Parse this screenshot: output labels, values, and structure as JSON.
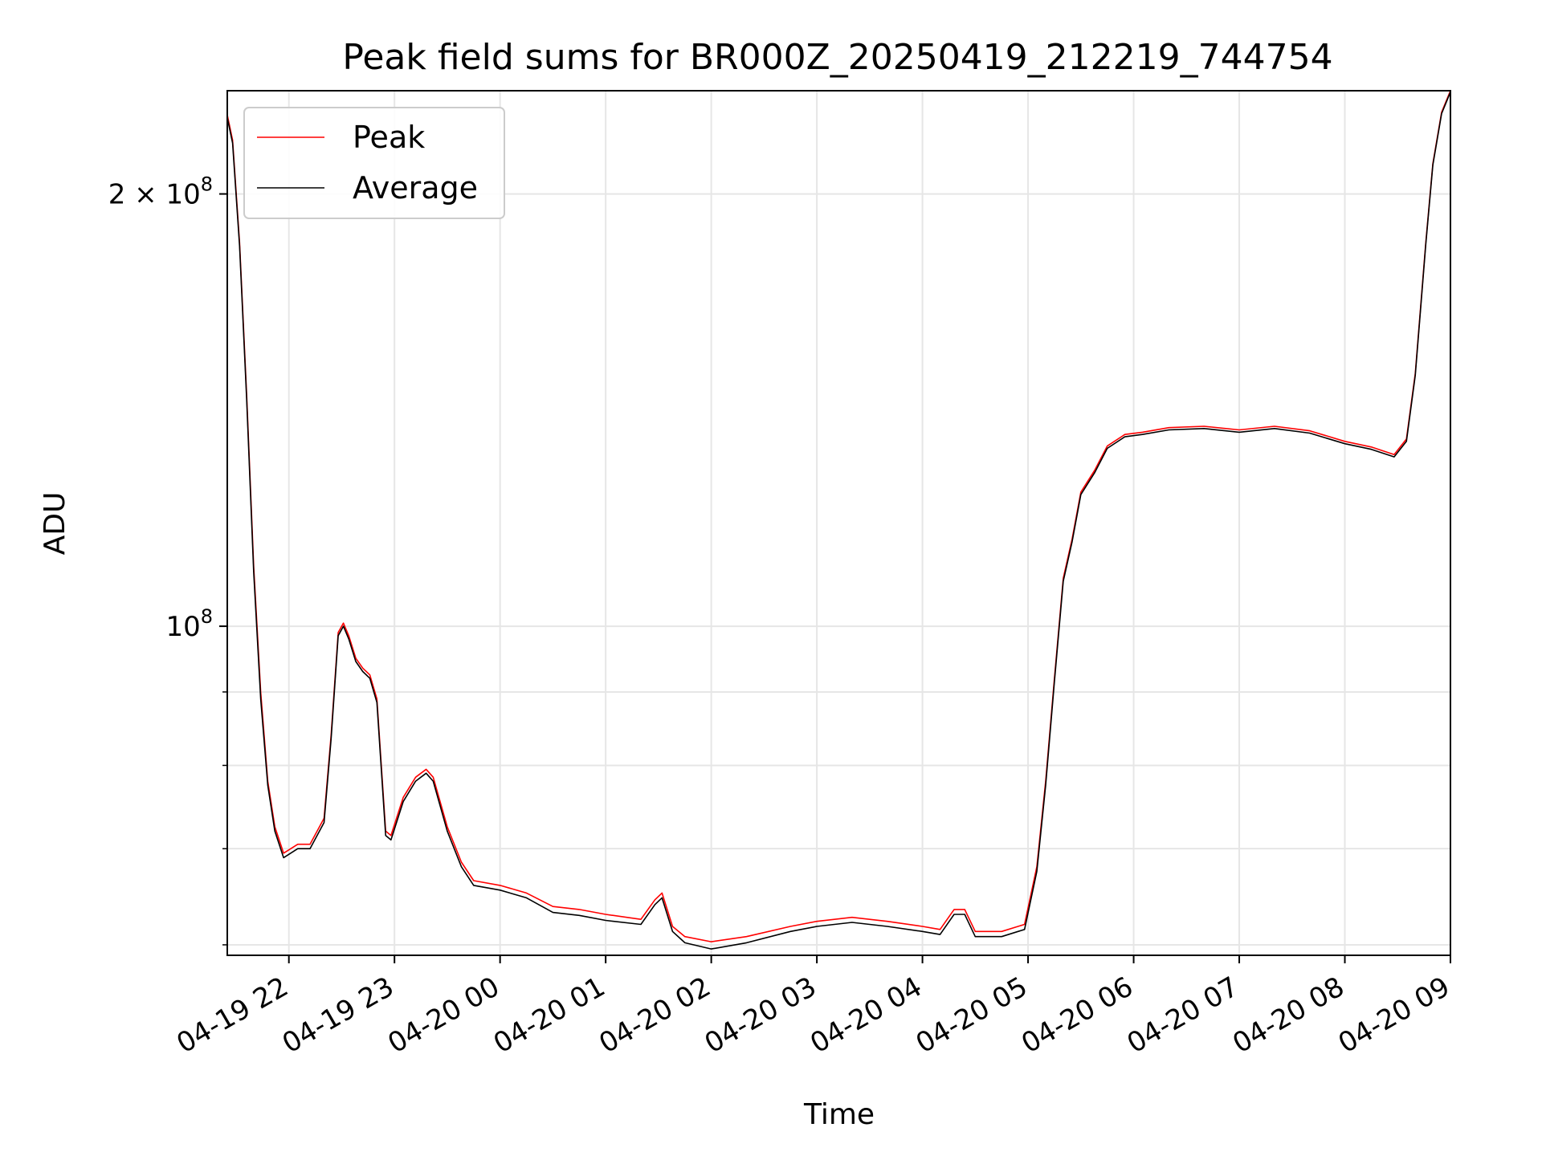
{
  "chart_data": {
    "type": "line",
    "title": "Peak field sums for BR000Z_20250419_212219_744754",
    "xlabel": "Time",
    "ylabel": "ADU",
    "yscale": "log",
    "xlim": [
      "2025-04-19 21:25",
      "2025-04-20 09:00"
    ],
    "ylim": [
      59000000,
      236000000
    ],
    "grid": true,
    "legend_position": "upper-left",
    "x_ticks": [
      {
        "t": "2025-04-19 22:00",
        "label": "04-19 22"
      },
      {
        "t": "2025-04-19 23:00",
        "label": "04-19 23"
      },
      {
        "t": "2025-04-20 00:00",
        "label": "04-20 00"
      },
      {
        "t": "2025-04-20 01:00",
        "label": "04-20 01"
      },
      {
        "t": "2025-04-20 02:00",
        "label": "04-20 02"
      },
      {
        "t": "2025-04-20 03:00",
        "label": "04-20 03"
      },
      {
        "t": "2025-04-20 04:00",
        "label": "04-20 04"
      },
      {
        "t": "2025-04-20 05:00",
        "label": "04-20 05"
      },
      {
        "t": "2025-04-20 06:00",
        "label": "04-20 06"
      },
      {
        "t": "2025-04-20 07:00",
        "label": "04-20 07"
      },
      {
        "t": "2025-04-20 08:00",
        "label": "04-20 08"
      },
      {
        "t": "2025-04-20 09:00",
        "label": "04-20 09"
      }
    ],
    "y_major_ticks": [
      {
        "value": 100000000,
        "label_base": "10",
        "label_exp": "8"
      },
      {
        "value": 200000000,
        "label_base": "2 × 10",
        "label_exp": "8"
      }
    ],
    "y_minor_ticks": [
      60000000,
      70000000,
      80000000,
      90000000
    ],
    "series": [
      {
        "name": "Peak",
        "color": "#ff0000",
        "points": [
          [
            "2025-04-19 21:25",
            227000000
          ],
          [
            "2025-04-19 21:28",
            218000000
          ],
          [
            "2025-04-19 21:32",
            185000000
          ],
          [
            "2025-04-19 21:36",
            145000000
          ],
          [
            "2025-04-19 21:40",
            110000000
          ],
          [
            "2025-04-19 21:44",
            90000000
          ],
          [
            "2025-04-19 21:48",
            78000000
          ],
          [
            "2025-04-19 21:52",
            72500000
          ],
          [
            "2025-04-19 21:57",
            69500000
          ],
          [
            "2025-04-19 22:05",
            70500000
          ],
          [
            "2025-04-19 22:12",
            70500000
          ],
          [
            "2025-04-19 22:20",
            73500000
          ],
          [
            "2025-04-19 22:24",
            84000000
          ],
          [
            "2025-04-19 22:28",
            99000000
          ],
          [
            "2025-04-19 22:31",
            100500000
          ],
          [
            "2025-04-19 22:34",
            98500000
          ],
          [
            "2025-04-19 22:38",
            95000000
          ],
          [
            "2025-04-19 22:42",
            93500000
          ],
          [
            "2025-04-19 22:46",
            92500000
          ],
          [
            "2025-04-19 22:50",
            89000000
          ],
          [
            "2025-04-19 22:55",
            72000000
          ],
          [
            "2025-04-19 22:58",
            71500000
          ],
          [
            "2025-04-19 23:05",
            76000000
          ],
          [
            "2025-04-19 23:12",
            78500000
          ],
          [
            "2025-04-19 23:18",
            79500000
          ],
          [
            "2025-04-19 23:22",
            78500000
          ],
          [
            "2025-04-19 23:30",
            72500000
          ],
          [
            "2025-04-19 23:38",
            68500000
          ],
          [
            "2025-04-19 23:45",
            66500000
          ],
          [
            "2025-04-20 00:00",
            66000000
          ],
          [
            "2025-04-20 00:15",
            65200000
          ],
          [
            "2025-04-20 00:30",
            63800000
          ],
          [
            "2025-04-20 00:45",
            63500000
          ],
          [
            "2025-04-20 01:00",
            63000000
          ],
          [
            "2025-04-20 01:20",
            62500000
          ],
          [
            "2025-04-20 01:28",
            64500000
          ],
          [
            "2025-04-20 01:32",
            65200000
          ],
          [
            "2025-04-20 01:38",
            61800000
          ],
          [
            "2025-04-20 01:45",
            60800000
          ],
          [
            "2025-04-20 02:00",
            60300000
          ],
          [
            "2025-04-20 02:20",
            60800000
          ],
          [
            "2025-04-20 02:45",
            61800000
          ],
          [
            "2025-04-20 03:00",
            62300000
          ],
          [
            "2025-04-20 03:20",
            62700000
          ],
          [
            "2025-04-20 03:40",
            62300000
          ],
          [
            "2025-04-20 04:00",
            61800000
          ],
          [
            "2025-04-20 04:10",
            61500000
          ],
          [
            "2025-04-20 04:18",
            63500000
          ],
          [
            "2025-04-20 04:24",
            63500000
          ],
          [
            "2025-04-20 04:30",
            61300000
          ],
          [
            "2025-04-20 04:45",
            61300000
          ],
          [
            "2025-04-20 04:58",
            62000000
          ],
          [
            "2025-04-20 05:05",
            68000000
          ],
          [
            "2025-04-20 05:10",
            78000000
          ],
          [
            "2025-04-20 05:15",
            92000000
          ],
          [
            "2025-04-20 05:20",
            108000000
          ],
          [
            "2025-04-20 05:25",
            115000000
          ],
          [
            "2025-04-20 05:30",
            124000000
          ],
          [
            "2025-04-20 05:38",
            128500000
          ],
          [
            "2025-04-20 05:45",
            133500000
          ],
          [
            "2025-04-20 05:55",
            136000000
          ],
          [
            "2025-04-20 06:05",
            136500000
          ],
          [
            "2025-04-20 06:20",
            137500000
          ],
          [
            "2025-04-20 06:40",
            137800000
          ],
          [
            "2025-04-20 07:00",
            137000000
          ],
          [
            "2025-04-20 07:20",
            137800000
          ],
          [
            "2025-04-20 07:40",
            136800000
          ],
          [
            "2025-04-20 08:00",
            134500000
          ],
          [
            "2025-04-20 08:15",
            133300000
          ],
          [
            "2025-04-20 08:28",
            131700000
          ],
          [
            "2025-04-20 08:35",
            135000000
          ],
          [
            "2025-04-20 08:40",
            150000000
          ],
          [
            "2025-04-20 08:46",
            185000000
          ],
          [
            "2025-04-20 08:50",
            210000000
          ],
          [
            "2025-04-20 08:55",
            228000000
          ],
          [
            "2025-04-20 09:00",
            236000000
          ]
        ]
      },
      {
        "name": "Average",
        "color": "#000000",
        "points": [
          [
            "2025-04-19 21:25",
            226000000
          ],
          [
            "2025-04-19 21:28",
            217000000
          ],
          [
            "2025-04-19 21:32",
            184000000
          ],
          [
            "2025-04-19 21:36",
            144000000
          ],
          [
            "2025-04-19 21:40",
            109000000
          ],
          [
            "2025-04-19 21:44",
            89000000
          ],
          [
            "2025-04-19 21:48",
            77500000
          ],
          [
            "2025-04-19 21:52",
            72000000
          ],
          [
            "2025-04-19 21:57",
            69000000
          ],
          [
            "2025-04-19 22:05",
            70000000
          ],
          [
            "2025-04-19 22:12",
            70000000
          ],
          [
            "2025-04-19 22:20",
            73000000
          ],
          [
            "2025-04-19 22:24",
            83500000
          ],
          [
            "2025-04-19 22:28",
            98500000
          ],
          [
            "2025-04-19 22:31",
            100000000
          ],
          [
            "2025-04-19 22:34",
            98000000
          ],
          [
            "2025-04-19 22:38",
            94500000
          ],
          [
            "2025-04-19 22:42",
            93000000
          ],
          [
            "2025-04-19 22:46",
            92000000
          ],
          [
            "2025-04-19 22:50",
            88500000
          ],
          [
            "2025-04-19 22:55",
            71500000
          ],
          [
            "2025-04-19 22:58",
            71000000
          ],
          [
            "2025-04-19 23:05",
            75500000
          ],
          [
            "2025-04-19 23:12",
            78000000
          ],
          [
            "2025-04-19 23:18",
            79000000
          ],
          [
            "2025-04-19 23:22",
            78000000
          ],
          [
            "2025-04-19 23:30",
            72000000
          ],
          [
            "2025-04-19 23:38",
            68000000
          ],
          [
            "2025-04-19 23:45",
            66000000
          ],
          [
            "2025-04-20 00:00",
            65500000
          ],
          [
            "2025-04-20 00:15",
            64700000
          ],
          [
            "2025-04-20 00:30",
            63200000
          ],
          [
            "2025-04-20 00:45",
            62900000
          ],
          [
            "2025-04-20 01:00",
            62400000
          ],
          [
            "2025-04-20 01:20",
            62000000
          ],
          [
            "2025-04-20 01:28",
            64000000
          ],
          [
            "2025-04-20 01:32",
            64700000
          ],
          [
            "2025-04-20 01:38",
            61300000
          ],
          [
            "2025-04-20 01:45",
            60200000
          ],
          [
            "2025-04-20 02:00",
            59600000
          ],
          [
            "2025-04-20 02:20",
            60200000
          ],
          [
            "2025-04-20 02:45",
            61300000
          ],
          [
            "2025-04-20 03:00",
            61800000
          ],
          [
            "2025-04-20 03:20",
            62200000
          ],
          [
            "2025-04-20 03:40",
            61800000
          ],
          [
            "2025-04-20 04:00",
            61300000
          ],
          [
            "2025-04-20 04:10",
            61000000
          ],
          [
            "2025-04-20 04:18",
            63000000
          ],
          [
            "2025-04-20 04:24",
            63000000
          ],
          [
            "2025-04-20 04:30",
            60800000
          ],
          [
            "2025-04-20 04:45",
            60800000
          ],
          [
            "2025-04-20 04:58",
            61500000
          ],
          [
            "2025-04-20 05:05",
            67500000
          ],
          [
            "2025-04-20 05:10",
            77500000
          ],
          [
            "2025-04-20 05:15",
            91500000
          ],
          [
            "2025-04-20 05:20",
            107500000
          ],
          [
            "2025-04-20 05:25",
            114500000
          ],
          [
            "2025-04-20 05:30",
            123500000
          ],
          [
            "2025-04-20 05:38",
            128000000
          ],
          [
            "2025-04-20 05:45",
            133000000
          ],
          [
            "2025-04-20 05:55",
            135500000
          ],
          [
            "2025-04-20 06:05",
            136000000
          ],
          [
            "2025-04-20 06:20",
            137000000
          ],
          [
            "2025-04-20 06:40",
            137300000
          ],
          [
            "2025-04-20 07:00",
            136500000
          ],
          [
            "2025-04-20 07:20",
            137300000
          ],
          [
            "2025-04-20 07:40",
            136300000
          ],
          [
            "2025-04-20 08:00",
            134000000
          ],
          [
            "2025-04-20 08:15",
            132800000
          ],
          [
            "2025-04-20 08:28",
            131200000
          ],
          [
            "2025-04-20 08:35",
            134500000
          ],
          [
            "2025-04-20 08:40",
            149500000
          ],
          [
            "2025-04-20 08:46",
            184500000
          ],
          [
            "2025-04-20 08:50",
            209500000
          ],
          [
            "2025-04-20 08:55",
            227500000
          ],
          [
            "2025-04-20 09:00",
            235500000
          ]
        ]
      }
    ]
  }
}
